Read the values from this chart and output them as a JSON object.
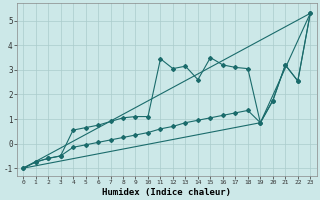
{
  "xlabel": "Humidex (Indice chaleur)",
  "background_color": "#cce8e8",
  "grid_color": "#aacccc",
  "line_color": "#1a6b6b",
  "xlim": [
    -0.5,
    23.5
  ],
  "ylim": [
    -1.3,
    5.7
  ],
  "yticks": [
    -1,
    0,
    1,
    2,
    3,
    4,
    5
  ],
  "xticks": [
    0,
    1,
    2,
    3,
    4,
    5,
    6,
    7,
    8,
    9,
    10,
    11,
    12,
    13,
    14,
    15,
    16,
    17,
    18,
    19,
    20,
    21,
    22,
    23
  ],
  "line1_x": [
    0,
    1,
    2,
    3,
    4,
    5,
    6,
    7,
    8,
    9,
    10,
    11,
    12,
    13,
    14,
    15,
    16,
    17,
    18,
    19,
    20,
    21,
    22,
    23
  ],
  "line1_y": [
    -1.0,
    -0.75,
    -0.6,
    -0.5,
    0.55,
    0.65,
    0.75,
    0.9,
    1.05,
    1.1,
    1.1,
    3.45,
    3.05,
    3.15,
    2.6,
    3.5,
    3.2,
    3.1,
    3.05,
    0.85,
    1.75,
    3.2,
    2.55,
    5.3
  ],
  "line2_x": [
    0,
    19,
    23
  ],
  "line2_y": [
    -1.0,
    0.85,
    5.3
  ],
  "line3_x": [
    0,
    1,
    2,
    3,
    4,
    5,
    6,
    7,
    8,
    9,
    10,
    11,
    12,
    13,
    14,
    15,
    16,
    17,
    18,
    19,
    20,
    21,
    22,
    23
  ],
  "line3_y": [
    -1.0,
    -0.75,
    -0.6,
    -0.5,
    -0.15,
    -0.05,
    0.05,
    0.15,
    0.25,
    0.35,
    0.45,
    0.6,
    0.7,
    0.85,
    0.95,
    1.05,
    1.15,
    1.25,
    1.35,
    0.85,
    1.75,
    3.2,
    2.55,
    5.3
  ],
  "line4_x": [
    0,
    23
  ],
  "line4_y": [
    -1.0,
    5.3
  ]
}
